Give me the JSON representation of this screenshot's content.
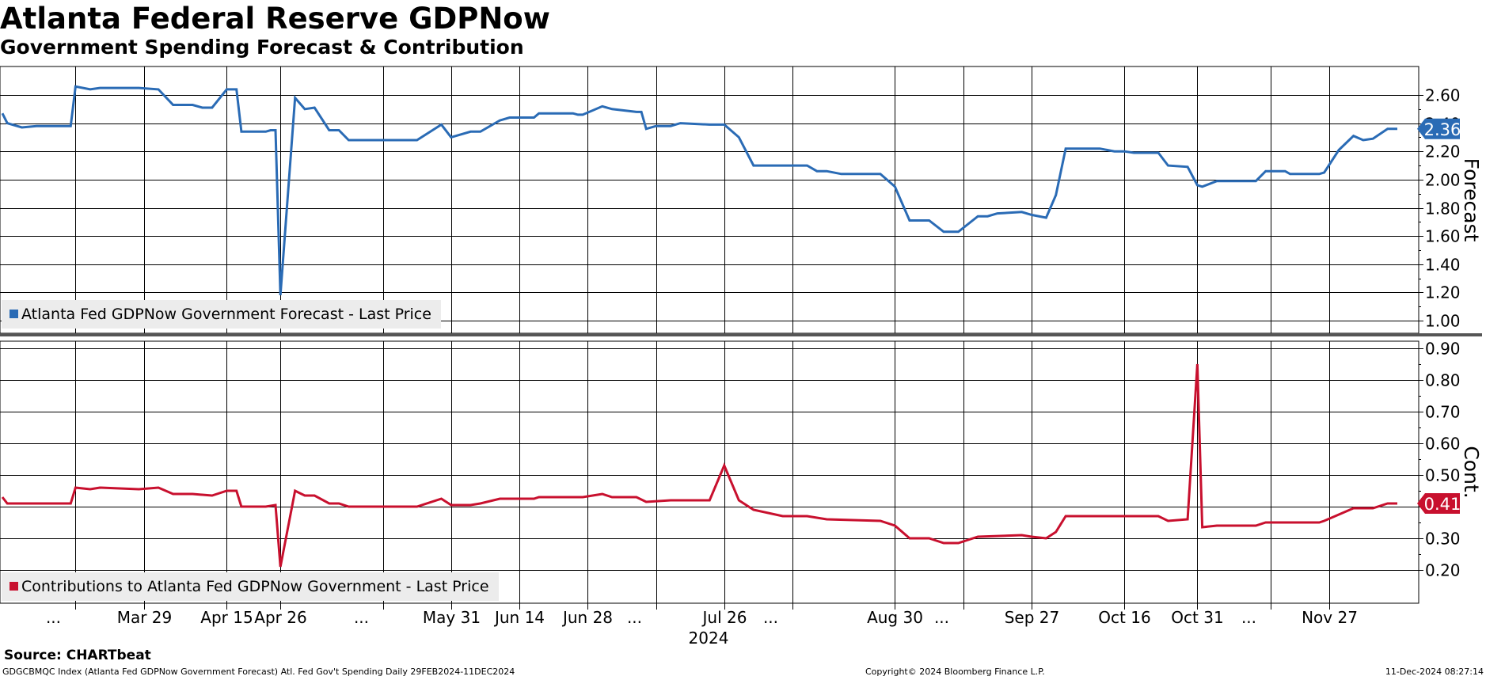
{
  "header": {
    "title": "Atlanta Federal Reserve GDPNow",
    "subtitle": "Government Spending Forecast & Contribution"
  },
  "footer": {
    "source": "Source: CHARTbeat",
    "description": "GDGCBMQC Index (Atlanta Fed GDPNow Government Forecast) Atl. Fed Gov't Spending  Daily 29FEB2024-11DEC2024",
    "copyright": "Copyright© 2024 Bloomberg Finance L.P.",
    "timestamp": "11-Dec-2024 08:27:14"
  },
  "colors": {
    "forecast": "#2a6bb5",
    "contribution": "#c8102e",
    "grid": "#000000"
  },
  "chart_data": [
    {
      "type": "line",
      "panel": "top",
      "ylabel": "Forecast",
      "ylim": [
        0.85,
        2.85
      ],
      "yticks": [
        "1.00",
        "1.20",
        "1.40",
        "1.60",
        "1.80",
        "2.00",
        "2.20",
        "2.40",
        "2.60"
      ],
      "xlim": [
        "2024-02-29",
        "2024-12-11"
      ],
      "grid": true,
      "legend": "bottom-left",
      "last_value_label": "2.36",
      "series": [
        {
          "name": "Atlanta Fed GDPNow Government Forecast - Last Price",
          "points": [
            [
              "2024-02-29",
              2.47
            ],
            [
              "2024-03-01",
              2.4
            ],
            [
              "2024-03-04",
              2.37
            ],
            [
              "2024-03-07",
              2.38
            ],
            [
              "2024-03-14",
              2.38
            ],
            [
              "2024-03-15",
              2.66
            ],
            [
              "2024-03-18",
              2.64
            ],
            [
              "2024-03-20",
              2.65
            ],
            [
              "2024-03-28",
              2.65
            ],
            [
              "2024-04-01",
              2.64
            ],
            [
              "2024-04-04",
              2.53
            ],
            [
              "2024-04-08",
              2.53
            ],
            [
              "2024-04-10",
              2.51
            ],
            [
              "2024-04-12",
              2.51
            ],
            [
              "2024-04-15",
              2.64
            ],
            [
              "2024-04-17",
              2.64
            ],
            [
              "2024-04-18",
              2.34
            ],
            [
              "2024-04-23",
              2.34
            ],
            [
              "2024-04-24",
              2.35
            ],
            [
              "2024-04-25",
              2.35
            ],
            [
              "2024-04-26",
              1.18
            ],
            [
              "2024-04-29",
              2.58
            ],
            [
              "2024-05-01",
              2.5
            ],
            [
              "2024-05-03",
              2.51
            ],
            [
              "2024-05-06",
              2.35
            ],
            [
              "2024-05-08",
              2.35
            ],
            [
              "2024-05-10",
              2.28
            ],
            [
              "2024-05-24",
              2.28
            ],
            [
              "2024-05-29",
              2.39
            ],
            [
              "2024-05-31",
              2.3
            ],
            [
              "2024-06-04",
              2.34
            ],
            [
              "2024-06-06",
              2.34
            ],
            [
              "2024-06-10",
              2.42
            ],
            [
              "2024-06-12",
              2.44
            ],
            [
              "2024-06-17",
              2.44
            ],
            [
              "2024-06-18",
              2.47
            ],
            [
              "2024-06-25",
              2.47
            ],
            [
              "2024-06-26",
              2.46
            ],
            [
              "2024-06-27",
              2.46
            ],
            [
              "2024-07-01",
              2.52
            ],
            [
              "2024-07-03",
              2.5
            ],
            [
              "2024-07-08",
              2.48
            ],
            [
              "2024-07-09",
              2.48
            ],
            [
              "2024-07-10",
              2.36
            ],
            [
              "2024-07-12",
              2.38
            ],
            [
              "2024-07-15",
              2.38
            ],
            [
              "2024-07-17",
              2.4
            ],
            [
              "2024-07-23",
              2.39
            ],
            [
              "2024-07-26",
              2.39
            ],
            [
              "2024-07-29",
              2.3
            ],
            [
              "2024-08-01",
              2.1
            ],
            [
              "2024-08-07",
              2.1
            ],
            [
              "2024-08-12",
              2.1
            ],
            [
              "2024-08-14",
              2.06
            ],
            [
              "2024-08-16",
              2.06
            ],
            [
              "2024-08-19",
              2.04
            ],
            [
              "2024-08-27",
              2.04
            ],
            [
              "2024-08-30",
              1.95
            ],
            [
              "2024-09-02",
              1.71
            ],
            [
              "2024-09-06",
              1.71
            ],
            [
              "2024-09-09",
              1.63
            ],
            [
              "2024-09-12",
              1.63
            ],
            [
              "2024-09-16",
              1.74
            ],
            [
              "2024-09-18",
              1.74
            ],
            [
              "2024-09-20",
              1.76
            ],
            [
              "2024-09-25",
              1.77
            ],
            [
              "2024-09-27",
              1.75
            ],
            [
              "2024-09-30",
              1.73
            ],
            [
              "2024-10-02",
              1.89
            ],
            [
              "2024-10-04",
              2.22
            ],
            [
              "2024-10-08",
              2.22
            ],
            [
              "2024-10-11",
              2.22
            ],
            [
              "2024-10-14",
              2.2
            ],
            [
              "2024-10-16",
              2.2
            ],
            [
              "2024-10-18",
              2.19
            ],
            [
              "2024-10-23",
              2.19
            ],
            [
              "2024-10-25",
              2.1
            ],
            [
              "2024-10-29",
              2.09
            ],
            [
              "2024-10-31",
              1.96
            ],
            [
              "2024-11-01",
              1.95
            ],
            [
              "2024-11-04",
              1.99
            ],
            [
              "2024-11-08",
              1.99
            ],
            [
              "2024-11-12",
              1.99
            ],
            [
              "2024-11-14",
              2.06
            ],
            [
              "2024-11-18",
              2.06
            ],
            [
              "2024-11-19",
              2.04
            ],
            [
              "2024-11-25",
              2.04
            ],
            [
              "2024-11-26",
              2.05
            ],
            [
              "2024-11-29",
              2.21
            ],
            [
              "2024-12-02",
              2.31
            ],
            [
              "2024-12-04",
              2.28
            ],
            [
              "2024-12-06",
              2.29
            ],
            [
              "2024-12-09",
              2.36
            ],
            [
              "2024-12-11",
              2.36
            ]
          ]
        }
      ]
    },
    {
      "type": "line",
      "panel": "bottom",
      "ylabel": "Cont.",
      "ylim": [
        0.1,
        0.95
      ],
      "yticks": [
        "0.20",
        "0.30",
        "0.40",
        "0.50",
        "0.60",
        "0.70",
        "0.80",
        "0.90"
      ],
      "xlim": [
        "2024-02-29",
        "2024-12-11"
      ],
      "xticks": [
        "...",
        "Mar 29",
        "Apr 15",
        "Apr 26",
        "...",
        "May 31",
        "Jun 14",
        "Jun 28",
        "...",
        "Jul 26",
        "...",
        "Aug 30",
        "...",
        "Sep 27",
        "Oct 16",
        "Oct 31",
        "...",
        "Nov 27"
      ],
      "xaxis_year": "2024",
      "grid": true,
      "legend": "bottom-left",
      "last_value_label": "0.41",
      "series": [
        {
          "name": "Contributions to Atlanta Fed GDPNow Government - Last Price",
          "points": [
            [
              "2024-02-29",
              0.43
            ],
            [
              "2024-03-01",
              0.41
            ],
            [
              "2024-03-04",
              0.41
            ],
            [
              "2024-03-14",
              0.41
            ],
            [
              "2024-03-15",
              0.46
            ],
            [
              "2024-03-18",
              0.455
            ],
            [
              "2024-03-20",
              0.46
            ],
            [
              "2024-03-28",
              0.455
            ],
            [
              "2024-04-01",
              0.46
            ],
            [
              "2024-04-04",
              0.44
            ],
            [
              "2024-04-08",
              0.44
            ],
            [
              "2024-04-12",
              0.435
            ],
            [
              "2024-04-15",
              0.45
            ],
            [
              "2024-04-17",
              0.45
            ],
            [
              "2024-04-18",
              0.4
            ],
            [
              "2024-04-23",
              0.4
            ],
            [
              "2024-04-25",
              0.405
            ],
            [
              "2024-04-26",
              0.21
            ],
            [
              "2024-04-29",
              0.45
            ],
            [
              "2024-05-01",
              0.435
            ],
            [
              "2024-05-03",
              0.435
            ],
            [
              "2024-05-06",
              0.41
            ],
            [
              "2024-05-08",
              0.41
            ],
            [
              "2024-05-10",
              0.4
            ],
            [
              "2024-05-24",
              0.4
            ],
            [
              "2024-05-29",
              0.425
            ],
            [
              "2024-05-31",
              0.405
            ],
            [
              "2024-06-04",
              0.405
            ],
            [
              "2024-06-06",
              0.41
            ],
            [
              "2024-06-10",
              0.425
            ],
            [
              "2024-06-17",
              0.425
            ],
            [
              "2024-06-18",
              0.43
            ],
            [
              "2024-06-27",
              0.43
            ],
            [
              "2024-07-01",
              0.44
            ],
            [
              "2024-07-03",
              0.43
            ],
            [
              "2024-07-08",
              0.43
            ],
            [
              "2024-07-10",
              0.415
            ],
            [
              "2024-07-15",
              0.42
            ],
            [
              "2024-07-23",
              0.42
            ],
            [
              "2024-07-26",
              0.53
            ],
            [
              "2024-07-29",
              0.42
            ],
            [
              "2024-08-01",
              0.39
            ],
            [
              "2024-08-07",
              0.37
            ],
            [
              "2024-08-12",
              0.37
            ],
            [
              "2024-08-16",
              0.36
            ],
            [
              "2024-08-27",
              0.355
            ],
            [
              "2024-08-30",
              0.34
            ],
            [
              "2024-09-02",
              0.3
            ],
            [
              "2024-09-06",
              0.3
            ],
            [
              "2024-09-09",
              0.285
            ],
            [
              "2024-09-12",
              0.285
            ],
            [
              "2024-09-16",
              0.305
            ],
            [
              "2024-09-25",
              0.31
            ],
            [
              "2024-09-27",
              0.305
            ],
            [
              "2024-09-30",
              0.3
            ],
            [
              "2024-10-02",
              0.32
            ],
            [
              "2024-10-04",
              0.37
            ],
            [
              "2024-10-11",
              0.37
            ],
            [
              "2024-10-14",
              0.37
            ],
            [
              "2024-10-23",
              0.37
            ],
            [
              "2024-10-25",
              0.355
            ],
            [
              "2024-10-29",
              0.36
            ],
            [
              "2024-10-31",
              0.85
            ],
            [
              "2024-11-01",
              0.335
            ],
            [
              "2024-11-04",
              0.34
            ],
            [
              "2024-11-12",
              0.34
            ],
            [
              "2024-11-14",
              0.35
            ],
            [
              "2024-11-25",
              0.35
            ],
            [
              "2024-11-26",
              0.355
            ],
            [
              "2024-11-29",
              0.375
            ],
            [
              "2024-12-02",
              0.395
            ],
            [
              "2024-12-06",
              0.395
            ],
            [
              "2024-12-09",
              0.41
            ],
            [
              "2024-12-11",
              0.41
            ]
          ]
        }
      ]
    }
  ]
}
